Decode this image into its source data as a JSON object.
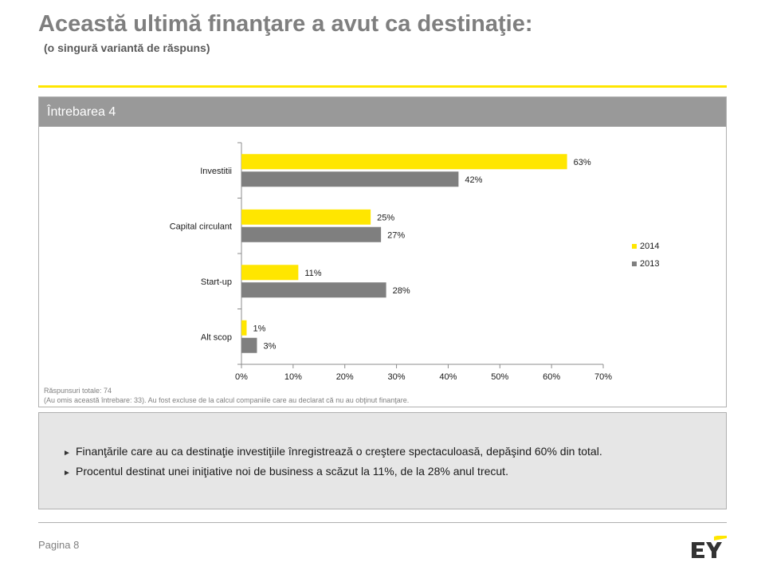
{
  "header": {
    "title": "Această ultimă finanţare a avut ca destinaţie:",
    "subtitle": "(o singură variantă de răspuns)"
  },
  "panel": {
    "label": "Întrebarea 4"
  },
  "chart_data": {
    "type": "bar",
    "orientation": "horizontal",
    "categories": [
      "Investitii",
      "Capital circulant",
      "Start-up",
      "Alt scop"
    ],
    "series": [
      {
        "name": "2014",
        "values": [
          63,
          25,
          11,
          1
        ],
        "labels": [
          "63%",
          "25%",
          "11%",
          "1%"
        ],
        "color": "#ffe600"
      },
      {
        "name": "2013",
        "values": [
          42,
          27,
          28,
          3
        ],
        "labels": [
          "42%",
          "27%",
          "28%",
          "3%"
        ],
        "color": "#7f7f7f"
      }
    ],
    "xlim": [
      0,
      70
    ],
    "xticks": [
      "0%",
      "10%",
      "20%",
      "30%",
      "40%",
      "50%",
      "60%",
      "70%"
    ],
    "legend_position": "right",
    "grid": false
  },
  "notes": {
    "line1": "Răspunsuri totale: 74",
    "line2": "(Au omis această întrebare: 33). Au fost excluse de la calcul companiile care au declarat că nu au obţinut finanţare."
  },
  "bullets": [
    {
      "marker": "►",
      "text": "Finanţările care au ca destinaţie investiţiile înregistrează o creştere spectaculoasă, depăşind 60% din total."
    },
    {
      "marker": "►",
      "text": "Procentul destinat unei iniţiative noi de business a scăzut la 11%, de la 28% anul trecut."
    }
  ],
  "footer": {
    "page": "Pagina 8",
    "logo": "EY"
  }
}
